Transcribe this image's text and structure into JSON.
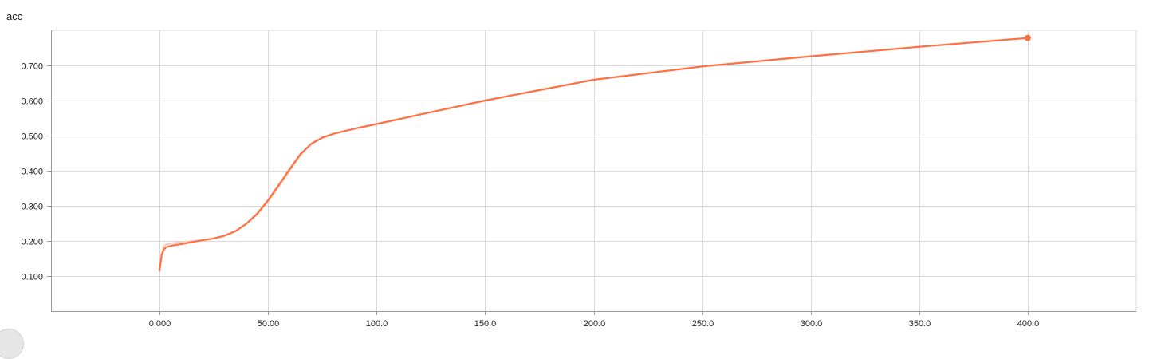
{
  "title": "acc",
  "colors": {
    "series": "#ff7043",
    "raw": "#ffc7b3",
    "grid": "#d9d9d9",
    "axis": "#999999",
    "tick_text": "#212121"
  },
  "chart_data": {
    "type": "line",
    "title": "acc",
    "xlabel": "",
    "ylabel": "",
    "xlim": [
      -50,
      450
    ],
    "ylim": [
      0.0,
      0.8
    ],
    "xticks": [
      0,
      50,
      100,
      150,
      200,
      250,
      300,
      350,
      400
    ],
    "xtick_labels": [
      "0.000",
      "50.00",
      "100.0",
      "150.0",
      "200.0",
      "250.0",
      "300.0",
      "350.0",
      "400.0"
    ],
    "yticks": [
      0.1,
      0.2,
      0.3,
      0.4,
      0.5,
      0.6,
      0.7
    ],
    "ytick_labels": [
      "0.100",
      "0.200",
      "0.300",
      "0.400",
      "0.500",
      "0.600",
      "0.700"
    ],
    "grid": true,
    "series": [
      {
        "role": "raw",
        "x": [
          0,
          1,
          2,
          3,
          5,
          8,
          12,
          15,
          20,
          25,
          30,
          35,
          40,
          45,
          50,
          55,
          60,
          65,
          70,
          75,
          80,
          90,
          100,
          120,
          150,
          200,
          250,
          300,
          350,
          400
        ],
        "y": [
          0.115,
          0.165,
          0.185,
          0.19,
          0.193,
          0.195,
          0.197,
          0.199,
          0.203,
          0.208,
          0.216,
          0.228,
          0.248,
          0.275,
          0.312,
          0.355,
          0.4,
          0.445,
          0.478,
          0.495,
          0.505,
          0.52,
          0.533,
          0.56,
          0.6,
          0.659,
          0.697,
          0.726,
          0.753,
          0.778
        ]
      },
      {
        "role": "smoothed",
        "x": [
          0,
          1,
          2,
          3,
          5,
          8,
          12,
          15,
          20,
          25,
          30,
          35,
          40,
          45,
          50,
          55,
          60,
          65,
          70,
          75,
          80,
          90,
          100,
          120,
          150,
          200,
          250,
          300,
          350,
          400
        ],
        "y": [
          0.115,
          0.16,
          0.176,
          0.182,
          0.186,
          0.189,
          0.193,
          0.197,
          0.202,
          0.207,
          0.215,
          0.228,
          0.249,
          0.278,
          0.316,
          0.36,
          0.405,
          0.448,
          0.477,
          0.494,
          0.505,
          0.52,
          0.533,
          0.56,
          0.6,
          0.659,
          0.697,
          0.726,
          0.753,
          0.778
        ]
      }
    ]
  }
}
